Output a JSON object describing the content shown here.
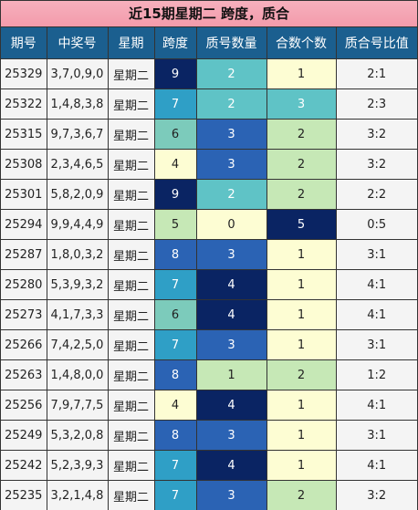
{
  "title": "近15期星期二 跨度，质合",
  "headers": [
    "期号",
    "中奖号",
    "星期",
    "跨度",
    "质号数量",
    "合数个数",
    "质合号比值"
  ],
  "rows": [
    {
      "issue": "25329",
      "numbers": "3,7,0,9,0",
      "weekday": "星期二",
      "span": "9",
      "prime_count": "2",
      "composite_count": "1",
      "ratio": "2:1"
    },
    {
      "issue": "25322",
      "numbers": "1,4,8,3,8",
      "weekday": "星期二",
      "span": "7",
      "prime_count": "2",
      "composite_count": "3",
      "ratio": "2:3"
    },
    {
      "issue": "25315",
      "numbers": "9,7,3,6,7",
      "weekday": "星期二",
      "span": "6",
      "prime_count": "3",
      "composite_count": "2",
      "ratio": "3:2"
    },
    {
      "issue": "25308",
      "numbers": "2,3,4,6,5",
      "weekday": "星期二",
      "span": "4",
      "prime_count": "3",
      "composite_count": "2",
      "ratio": "3:2"
    },
    {
      "issue": "25301",
      "numbers": "5,8,2,0,9",
      "weekday": "星期二",
      "span": "9",
      "prime_count": "2",
      "composite_count": "2",
      "ratio": "2:2"
    },
    {
      "issue": "25294",
      "numbers": "9,9,4,4,9",
      "weekday": "星期二",
      "span": "5",
      "prime_count": "0",
      "composite_count": "5",
      "ratio": "0:5"
    },
    {
      "issue": "25287",
      "numbers": "1,8,0,3,2",
      "weekday": "星期二",
      "span": "8",
      "prime_count": "3",
      "composite_count": "1",
      "ratio": "3:1"
    },
    {
      "issue": "25280",
      "numbers": "5,3,9,3,2",
      "weekday": "星期二",
      "span": "7",
      "prime_count": "4",
      "composite_count": "1",
      "ratio": "4:1"
    },
    {
      "issue": "25273",
      "numbers": "4,1,7,3,3",
      "weekday": "星期二",
      "span": "6",
      "prime_count": "4",
      "composite_count": "1",
      "ratio": "4:1"
    },
    {
      "issue": "25266",
      "numbers": "7,4,2,5,0",
      "weekday": "星期二",
      "span": "7",
      "prime_count": "3",
      "composite_count": "1",
      "ratio": "3:1"
    },
    {
      "issue": "25263",
      "numbers": "1,4,8,0,0",
      "weekday": "星期二",
      "span": "8",
      "prime_count": "1",
      "composite_count": "2",
      "ratio": "1:2"
    },
    {
      "issue": "25256",
      "numbers": "7,9,7,7,5",
      "weekday": "星期二",
      "span": "4",
      "prime_count": "4",
      "composite_count": "1",
      "ratio": "4:1"
    },
    {
      "issue": "25249",
      "numbers": "5,3,2,0,8",
      "weekday": "星期二",
      "span": "8",
      "prime_count": "3",
      "composite_count": "1",
      "ratio": "3:1"
    },
    {
      "issue": "25242",
      "numbers": "5,2,3,9,3",
      "weekday": "星期二",
      "span": "7",
      "prime_count": "4",
      "composite_count": "1",
      "ratio": "4:1"
    },
    {
      "issue": "25235",
      "numbers": "3,2,1,4,8",
      "weekday": "星期二",
      "span": "7",
      "prime_count": "3",
      "composite_count": "2",
      "ratio": "3:2"
    }
  ],
  "colors": {
    "title_bg": "#f39bab",
    "header_bg": "#1b5f8f",
    "navy": "#0a2463",
    "blue": "#2b63b4",
    "cyan": "#2f9fc6",
    "teal": "#5fc3c6",
    "mint": "#7ccbbb",
    "green": "#c6e8b6",
    "cream": "#fdfdd3",
    "plain": "#f4f4f4"
  }
}
